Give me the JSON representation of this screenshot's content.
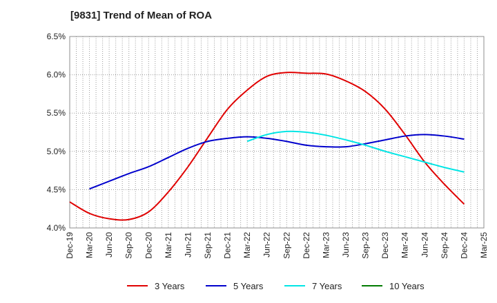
{
  "chart_data": {
    "type": "line",
    "title": "[9831]  Trend of Mean of ROA",
    "xlabel": "",
    "ylabel": "",
    "ylim": [
      4.0,
      6.5
    ],
    "y_ticks": [
      "4.0%",
      "4.5%",
      "5.0%",
      "5.5%",
      "6.0%",
      "6.5%"
    ],
    "y_tick_values": [
      4.0,
      4.5,
      5.0,
      5.5,
      6.0,
      6.5
    ],
    "x_ticks": [
      "Dec-19",
      "Mar-20",
      "Jun-20",
      "Sep-20",
      "Dec-20",
      "Mar-21",
      "Jun-21",
      "Sep-21",
      "Dec-21",
      "Mar-22",
      "Jun-22",
      "Sep-22",
      "Dec-22",
      "Mar-23",
      "Jun-23",
      "Sep-23",
      "Dec-23",
      "Mar-24",
      "Jun-24",
      "Sep-24",
      "Dec-24",
      "Mar-25"
    ],
    "grid": true,
    "legend_position": "bottom",
    "series": [
      {
        "name": "3 Years",
        "color": "#e00000",
        "start_index": 0,
        "values": [
          4.34,
          4.19,
          4.12,
          4.11,
          4.21,
          4.47,
          4.8,
          5.18,
          5.55,
          5.8,
          5.98,
          6.03,
          6.02,
          6.01,
          5.92,
          5.78,
          5.55,
          5.22,
          4.86,
          4.57,
          4.31
        ]
      },
      {
        "name": "5 Years",
        "color": "#0000cc",
        "start_index": 1,
        "values": [
          4.51,
          4.61,
          4.71,
          4.8,
          4.92,
          5.04,
          5.13,
          5.17,
          5.19,
          5.17,
          5.13,
          5.08,
          5.06,
          5.06,
          5.1,
          5.15,
          5.2,
          5.22,
          5.2,
          5.16
        ]
      },
      {
        "name": "7 Years",
        "color": "#00e5e5",
        "start_index": 9,
        "values": [
          5.13,
          5.22,
          5.26,
          5.25,
          5.21,
          5.15,
          5.08,
          5.0,
          4.93,
          4.86,
          4.79,
          4.73
        ]
      },
      {
        "name": "10 Years",
        "color": "#007a00",
        "start_index": 0,
        "values": []
      }
    ]
  }
}
